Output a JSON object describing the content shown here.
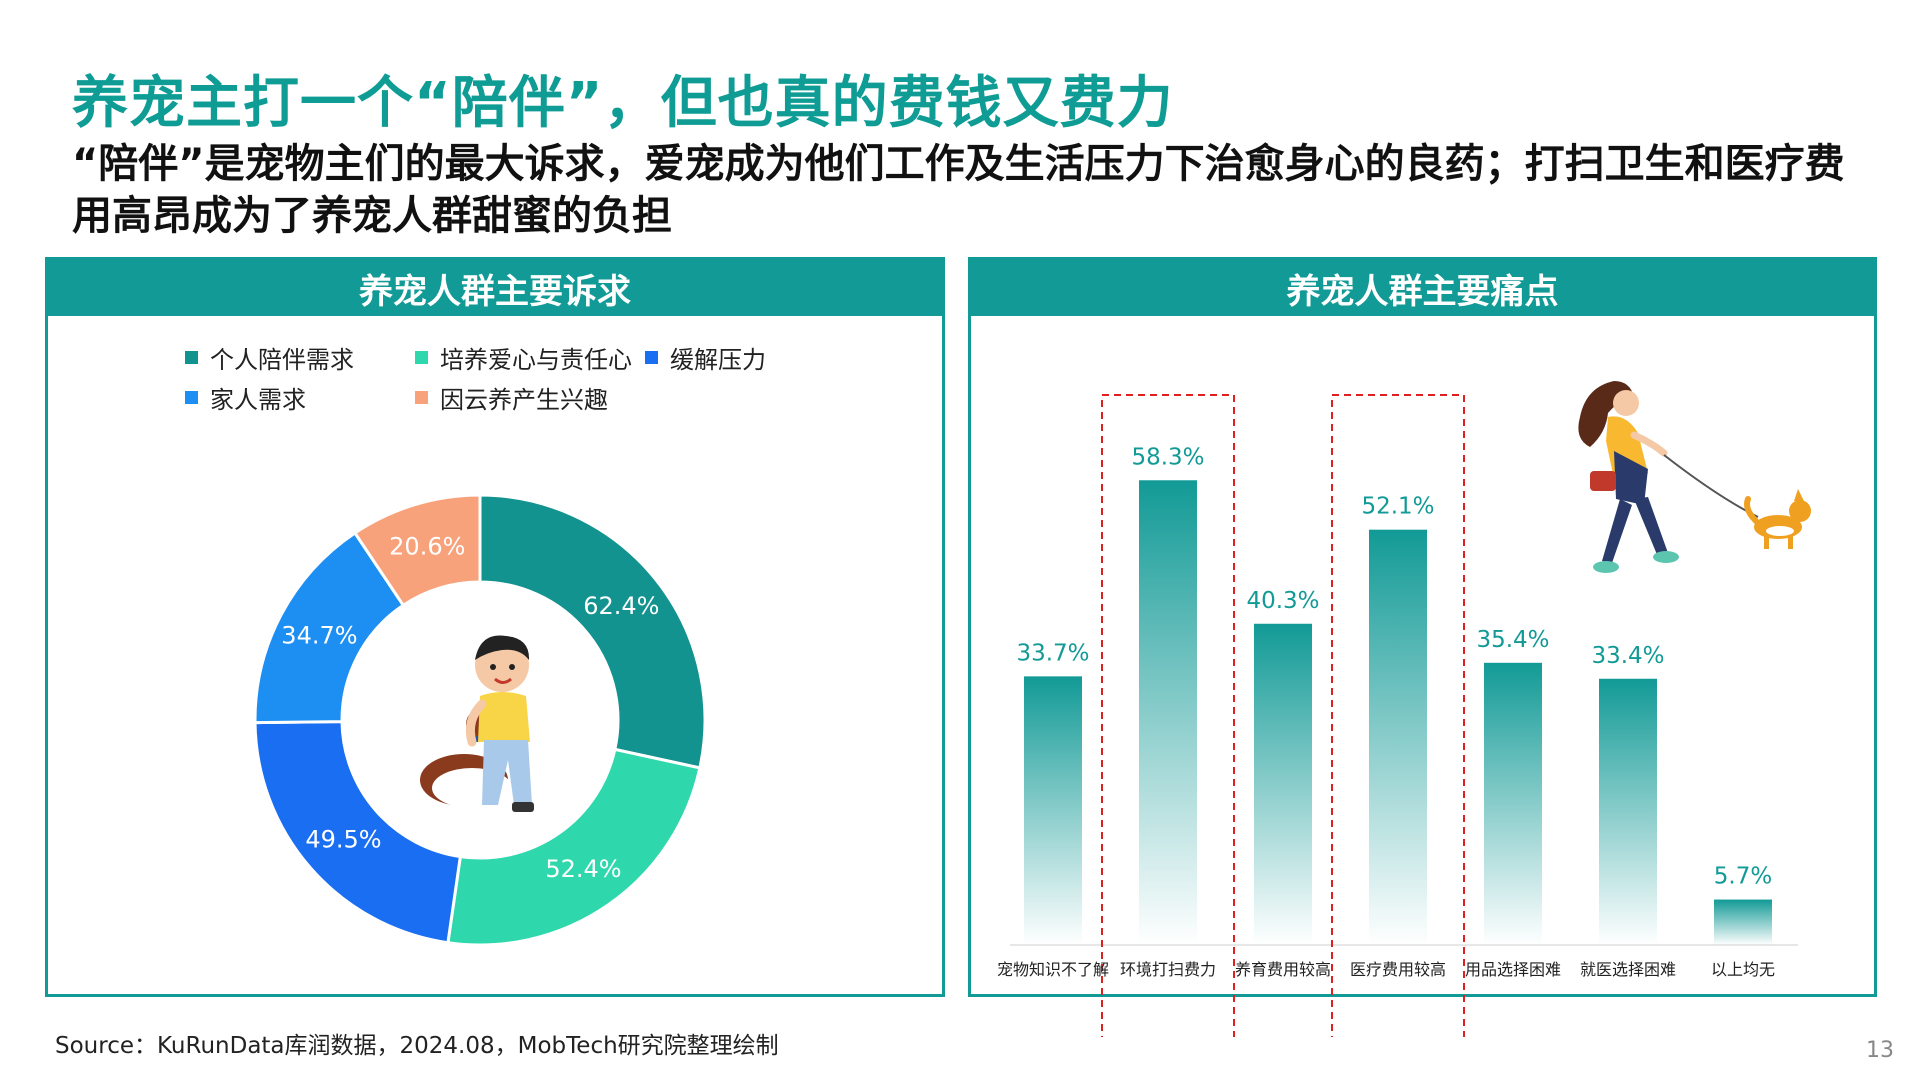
{
  "page": {
    "title": "养宠主打一个“陪伴”，但也真的费钱又费力",
    "subtitle": "“陪伴”是宠物主们的最大诉求，爱宠成为他们工作及生活压力下治愈身心的良药；打扫卫生和医疗费用高昂成为了养宠人群甜蜜的负担",
    "source": "Source：KuRunData库润数据，2024.08，MobTech研究院整理绘制",
    "page_number": "13"
  },
  "left_panel": {
    "title": "养宠人群主要诉求"
  },
  "right_panel": {
    "title": "养宠人群主要痛点"
  },
  "colors": {
    "accent": "#129a96",
    "title": "#0e9c95",
    "highlight_box": "#e02020"
  },
  "chart_data": [
    {
      "type": "pie",
      "donut": true,
      "legend_placement": "top",
      "series": [
        {
          "name": "个人陪伴需求",
          "value": 62.4,
          "color": "#13938f"
        },
        {
          "name": "培养爱心与责任心",
          "value": 52.4,
          "color": "#2fd8ac"
        },
        {
          "name": "缓解压力",
          "value": 49.5,
          "color": "#1a6ef2"
        },
        {
          "name": "家人需求",
          "value": 34.7,
          "color": "#1e8ff2"
        },
        {
          "name": "因云养产生兴趣",
          "value": 20.6,
          "color": "#f7a27b"
        }
      ],
      "labels": [
        "62.4%",
        "52.4%",
        "49.5%",
        "34.7%",
        "20.6%"
      ]
    },
    {
      "type": "bar",
      "categories": [
        "宠物知识不了解",
        "环境打扫费力",
        "养育费用较高",
        "医疗费用较高",
        "用品选择困难",
        "就医选择困难",
        "以上均无"
      ],
      "values": [
        33.7,
        58.3,
        40.3,
        52.1,
        35.4,
        33.4,
        5.7
      ],
      "labels": [
        "33.7%",
        "58.3%",
        "40.3%",
        "52.1%",
        "35.4%",
        "33.4%",
        "5.7%"
      ],
      "highlighted": [
        "环境打扫费力",
        "医疗费用较高"
      ],
      "ylim": [
        0,
        70
      ],
      "grid": false,
      "bar_color": "#1aa19c"
    }
  ]
}
